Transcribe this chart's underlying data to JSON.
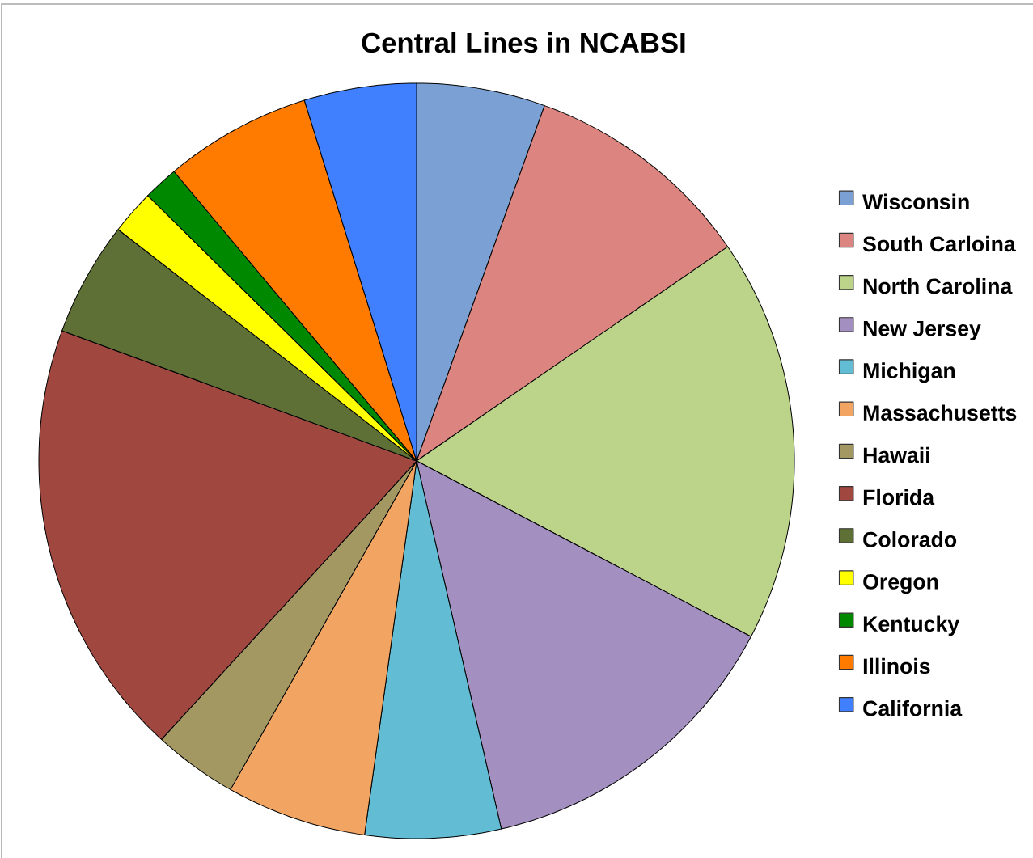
{
  "chart_data": {
    "type": "pie",
    "title": "Central Lines in NCABSI",
    "categories": [
      "Wisconsin",
      "South Carloina",
      "North Carolina",
      "New Jersey",
      "Michigan",
      "Massachusetts",
      "Hawaii",
      "Florida",
      "Colorado",
      "Oregon",
      "Kentucky",
      "Illinois",
      "California"
    ],
    "values": [
      5.5,
      9.9,
      17.3,
      13.7,
      5.8,
      6.0,
      3.6,
      18.8,
      4.9,
      1.9,
      1.5,
      6.3,
      4.8
    ],
    "colors": [
      "#7aa0d4",
      "#dc847f",
      "#bcd38a",
      "#a490c0",
      "#62bcd4",
      "#f2a562",
      "#a39862",
      "#a0483f",
      "#5e7035",
      "#ffff00",
      "#008800",
      "#ff7b00",
      "#4080ff"
    ],
    "legend": "right"
  }
}
